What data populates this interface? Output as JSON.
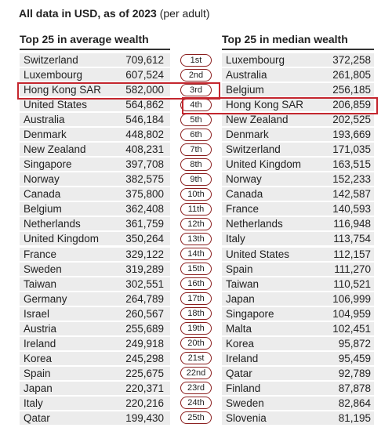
{
  "header": {
    "title": "All data in USD, as of 2023",
    "note": "(per adult)"
  },
  "left": {
    "heading": "Top 25 in average wealth",
    "rows": [
      [
        "Switzerland",
        "709,612"
      ],
      [
        "Luxembourg",
        "607,524"
      ],
      [
        "Hong Kong SAR",
        "582,000"
      ],
      [
        "United States",
        "564,862"
      ],
      [
        "Australia",
        "546,184"
      ],
      [
        "Denmark",
        "448,802"
      ],
      [
        "New Zealand",
        "408,231"
      ],
      [
        "Singapore",
        "397,708"
      ],
      [
        "Norway",
        "382,575"
      ],
      [
        "Canada",
        "375,800"
      ],
      [
        "Belgium",
        "362,408"
      ],
      [
        "Netherlands",
        "361,759"
      ],
      [
        "United Kingdom",
        "350,264"
      ],
      [
        "France",
        "329,122"
      ],
      [
        "Sweden",
        "319,289"
      ],
      [
        "Taiwan",
        "302,551"
      ],
      [
        "Germany",
        "264,789"
      ],
      [
        "Israel",
        "260,567"
      ],
      [
        "Austria",
        "255,689"
      ],
      [
        "Ireland",
        "249,918"
      ],
      [
        "Korea",
        "245,298"
      ],
      [
        "Spain",
        "225,675"
      ],
      [
        "Japan",
        "220,371"
      ],
      [
        "Italy",
        "220,216"
      ],
      [
        "Qatar",
        "199,430"
      ]
    ]
  },
  "ranks": [
    "1st",
    "2nd",
    "3rd",
    "4th",
    "5th",
    "6th",
    "7th",
    "8th",
    "9th",
    "10th",
    "11th",
    "12th",
    "13th",
    "14th",
    "15th",
    "16th",
    "17th",
    "18th",
    "19th",
    "20th",
    "21st",
    "22nd",
    "23rd",
    "24th",
    "25th"
  ],
  "right": {
    "heading": "Top 25 in median wealth",
    "rows": [
      [
        "Luxembourg",
        "372,258"
      ],
      [
        "Australia",
        "261,805"
      ],
      [
        "Belgium",
        "256,185"
      ],
      [
        "Hong Kong SAR",
        "206,859"
      ],
      [
        "New Zealand",
        "202,525"
      ],
      [
        "Denmark",
        "193,669"
      ],
      [
        "Switzerland",
        "171,035"
      ],
      [
        "United Kingdom",
        "163,515"
      ],
      [
        "Norway",
        "152,233"
      ],
      [
        "Canada",
        "142,587"
      ],
      [
        "France",
        "140,593"
      ],
      [
        "Netherlands",
        "116,948"
      ],
      [
        "Italy",
        "113,754"
      ],
      [
        "United States",
        "112,157"
      ],
      [
        "Spain",
        "111,270"
      ],
      [
        "Taiwan",
        "110,521"
      ],
      [
        "Japan",
        "106,999"
      ],
      [
        "Singapore",
        "104,959"
      ],
      [
        "Malta",
        "102,451"
      ],
      [
        "Korea",
        "95,872"
      ],
      [
        "Ireland",
        "95,459"
      ],
      [
        "Qatar",
        "92,789"
      ],
      [
        "Finland",
        "87,878"
      ],
      [
        "Sweden",
        "82,864"
      ],
      [
        "Slovenia",
        "81,195"
      ]
    ]
  }
}
